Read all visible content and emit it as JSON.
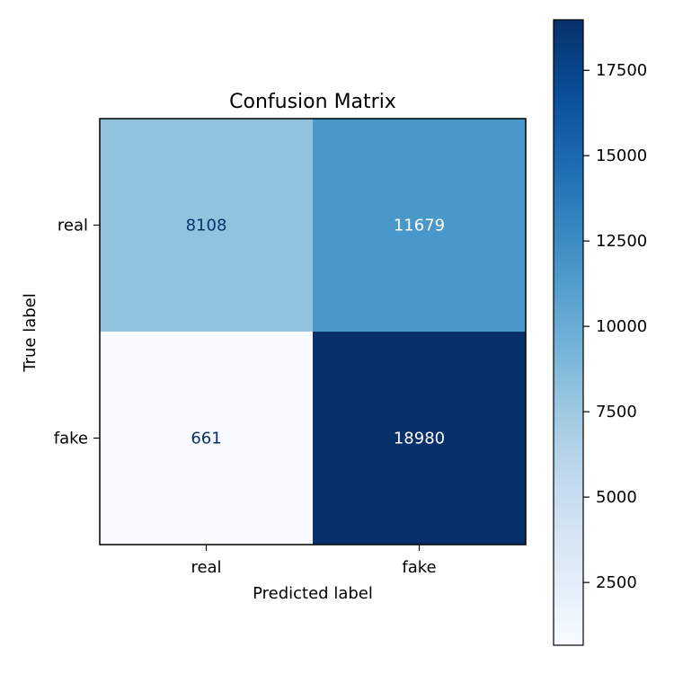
{
  "chart_data": {
    "type": "heatmap",
    "title": "Confusion Matrix",
    "xlabel": "Predicted label",
    "ylabel": "True label",
    "x_categories": [
      "real",
      "fake"
    ],
    "y_categories": [
      "real",
      "fake"
    ],
    "values": [
      [
        8108,
        11679
      ],
      [
        661,
        18980
      ]
    ],
    "colormap": "Blues",
    "color_range": [
      661,
      18980
    ],
    "colorbar_ticks": [
      2500,
      5000,
      7500,
      10000,
      12500,
      15000,
      17500
    ],
    "colorbar_tick_labels": [
      "2500",
      "5000",
      "7500",
      "10000",
      "12500",
      "15000",
      "17500"
    ],
    "cell_text_colors": {
      "dark_bg": "#ffffff",
      "light_bg": "#08306b"
    }
  }
}
